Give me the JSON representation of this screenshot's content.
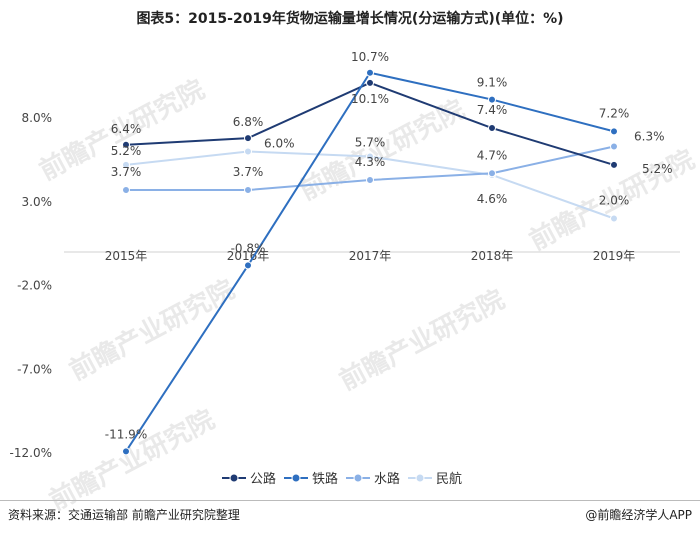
{
  "page": {
    "title": "图表5：2015-2019年货物运输量增长情况(分运输方式)(单位：%)",
    "source": "资料来源：交通运输部 前瞻产业研究院整理",
    "brand": "@前瞻经济学人APP",
    "watermark": "前瞻产业研究院"
  },
  "chart_data": {
    "type": "line",
    "categories": [
      "2015年",
      "2016年",
      "2017年",
      "2018年",
      "2019年"
    ],
    "ylim": [
      -12.0,
      8.0
    ],
    "yticks": [
      8.0,
      3.0,
      -2.0,
      -7.0,
      -12.0
    ],
    "ytick_labels": [
      "8.0%",
      "3.0%",
      "-2.0%",
      "-7.0%",
      "-12.0%"
    ],
    "grid": false,
    "legend_position": "bottom",
    "series": [
      {
        "name": "公路",
        "color": "#1f3b73",
        "values": [
          6.4,
          6.8,
          10.1,
          7.4,
          5.2
        ],
        "labels": [
          "6.4%",
          "6.8%",
          "10.1%",
          "7.4%",
          "5.2%"
        ]
      },
      {
        "name": "铁路",
        "color": "#2e6fc0",
        "values": [
          -11.9,
          -0.8,
          10.7,
          9.1,
          7.2
        ],
        "labels": [
          "-11.9%",
          "-0.8%",
          "10.7%",
          "9.1%",
          "7.2%"
        ]
      },
      {
        "name": "水路",
        "color": "#8ab0e6",
        "values": [
          3.7,
          3.7,
          4.3,
          4.7,
          6.3
        ],
        "labels": [
          "3.7%",
          "3.7%",
          "4.3%",
          "4.7%",
          "6.3%"
        ]
      },
      {
        "name": "民航",
        "color": "#c6daf2",
        "values": [
          5.2,
          6.0,
          5.7,
          4.6,
          2.0
        ],
        "labels": [
          "5.2%",
          "6.0%",
          "5.7%",
          "4.6%",
          "2.0%"
        ]
      }
    ]
  }
}
